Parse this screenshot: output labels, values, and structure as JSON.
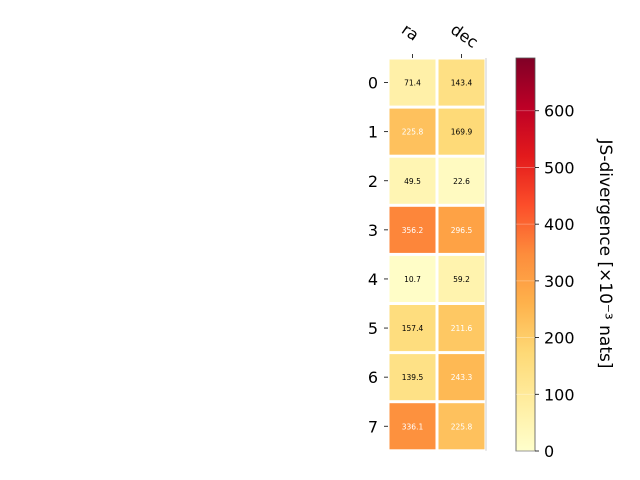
{
  "chart_data": {
    "type": "heatmap",
    "title": "",
    "columns": [
      "ra",
      "dec"
    ],
    "rows": [
      "0",
      "1",
      "2",
      "3",
      "4",
      "5",
      "6",
      "7"
    ],
    "values": [
      [
        71.4,
        143.4
      ],
      [
        225.8,
        169.9
      ],
      [
        49.5,
        22.6
      ],
      [
        356.2,
        296.5
      ],
      [
        10.7,
        59.2
      ],
      [
        157.4,
        211.6
      ],
      [
        139.5,
        243.3
      ],
      [
        336.1,
        225.8
      ]
    ],
    "cell_labels": [
      [
        "71.4",
        "143.4"
      ],
      [
        "225.8",
        "169.9"
      ],
      [
        "49.5",
        "22.6"
      ],
      [
        "356.2",
        "296.5"
      ],
      [
        "10.7",
        "59.2"
      ],
      [
        "157.4",
        "211.6"
      ],
      [
        "139.5",
        "243.3"
      ],
      [
        "336.1",
        "225.8"
      ]
    ],
    "colorbar": {
      "label": "JS-divergence [×10⁻³ nats]",
      "range": [
        0,
        693
      ],
      "ticks": [
        0,
        100,
        200,
        300,
        400,
        500,
        600
      ],
      "tick_labels": [
        "0",
        "100",
        "200",
        "300",
        "400",
        "500",
        "600"
      ],
      "colormap": "YlOrRd",
      "placement": "right"
    },
    "grid": false
  }
}
